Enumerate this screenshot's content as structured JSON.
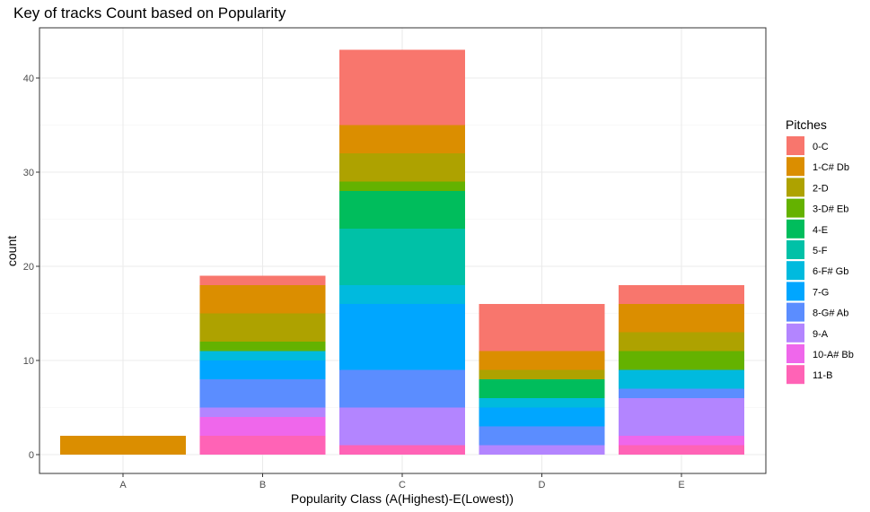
{
  "chart_data": {
    "type": "bar",
    "stacked": true,
    "title": "Key of tracks Count based on Popularity",
    "xlabel": "Popularity Class (A(Highest)-E(Lowest))",
    "ylabel": "count",
    "categories": [
      "A",
      "B",
      "C",
      "D",
      "E"
    ],
    "ylim": [
      0,
      45
    ],
    "yticks": [
      0,
      10,
      20,
      30,
      40
    ],
    "grid": true,
    "legend": {
      "title": "Pitches",
      "position": "right"
    },
    "series": [
      {
        "name": "0-C",
        "color": "#F8766D",
        "values": [
          0,
          1,
          8,
          5,
          2
        ]
      },
      {
        "name": "1-C# Db",
        "color": "#DB8E00",
        "values": [
          2,
          3,
          3,
          2,
          3
        ]
      },
      {
        "name": "2-D",
        "color": "#AEA200",
        "values": [
          0,
          3,
          3,
          1,
          2
        ]
      },
      {
        "name": "3-D# Eb",
        "color": "#64B200",
        "values": [
          0,
          1,
          1,
          0,
          2
        ]
      },
      {
        "name": "4-E",
        "color": "#00BD5C",
        "values": [
          0,
          0,
          4,
          2,
          0
        ]
      },
      {
        "name": "5-F",
        "color": "#00C1A7",
        "values": [
          0,
          0,
          6,
          0,
          0
        ]
      },
      {
        "name": "6-F# Gb",
        "color": "#00BADE",
        "values": [
          0,
          1,
          2,
          1,
          2
        ]
      },
      {
        "name": "7-G",
        "color": "#00A6FF",
        "values": [
          0,
          2,
          7,
          2,
          0
        ]
      },
      {
        "name": "8-G# Ab",
        "color": "#5B8DFF",
        "values": [
          0,
          3,
          4,
          2,
          1
        ]
      },
      {
        "name": "9-A",
        "color": "#B385FF",
        "values": [
          0,
          1,
          4,
          1,
          4
        ]
      },
      {
        "name": "10-A# Bb",
        "color": "#EF67EB",
        "values": [
          0,
          2,
          0,
          0,
          1
        ]
      },
      {
        "name": "11-B",
        "color": "#FF63B6",
        "values": [
          0,
          2,
          1,
          0,
          1
        ]
      }
    ]
  }
}
